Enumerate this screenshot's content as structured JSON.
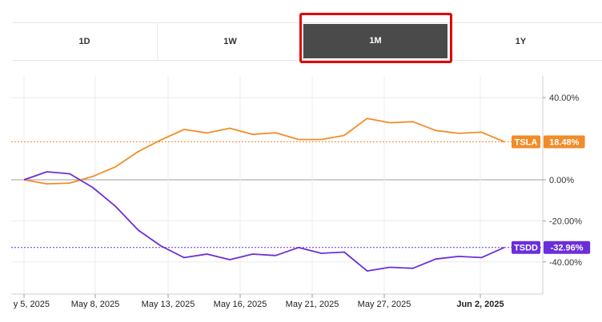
{
  "range_tabs": [
    {
      "label": "1D",
      "active": false
    },
    {
      "label": "1W",
      "active": false
    },
    {
      "label": "1M",
      "active": true
    },
    {
      "label": "1Y",
      "active": false
    }
  ],
  "chart_data": {
    "type": "line",
    "x_labels": [
      "y 5, 2025",
      "May 8, 2025",
      "May 13, 2025",
      "May 16, 2025",
      "May 21, 2025",
      "May 27, 2025",
      "Jun 2, 2025"
    ],
    "y_ticks": [
      "40.00%",
      "0.00%",
      "-20.00%",
      "-40.00%"
    ],
    "yticks_values": [
      40,
      0,
      -20,
      -40
    ],
    "ylim": [
      -44,
      51
    ],
    "grid": true,
    "series": [
      {
        "name": "TSLA",
        "color": "#f28c28",
        "last_label": "18.48%",
        "last_value": 18.48,
        "values": [
          0,
          -2,
          -1.6,
          1.6,
          6.3,
          13.8,
          19.5,
          24.5,
          22.8,
          25.1,
          22.1,
          22.9,
          19.6,
          19.6,
          21.6,
          29.9,
          27.8,
          28.3,
          24,
          22.6,
          23.2,
          18.48
        ]
      },
      {
        "name": "TSDD",
        "color": "#6a2fd9",
        "last_label": "-32.96%",
        "last_value": -32.96,
        "values": [
          0,
          3.9,
          2.9,
          -3.7,
          -12.9,
          -24.6,
          -32.3,
          -37.9,
          -36.2,
          -38.9,
          -36.2,
          -36.9,
          -33,
          -35.8,
          -35.2,
          -44.4,
          -42.6,
          -43.1,
          -38.6,
          -37.3,
          -37.9,
          -32.96
        ]
      }
    ]
  }
}
